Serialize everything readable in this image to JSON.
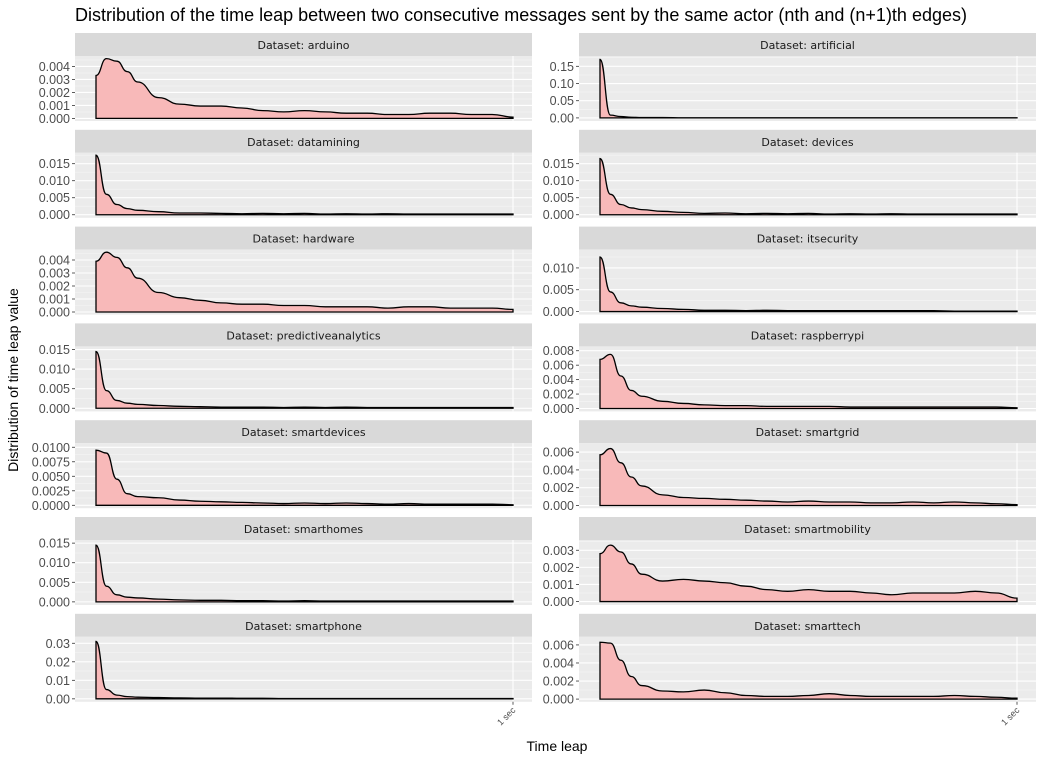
{
  "chart_data": {
    "type": "area",
    "title": "Distribution of the time leap between two consecutive messages sent by the same actor (nth and (n+1)th edges)",
    "xlabel": "Time leap",
    "ylabel": "Distribution of time leap value",
    "x_tick_label": "1 sec",
    "strip_prefix": "Dataset: ",
    "fill_color": "#F8B9B9",
    "line_color": "#000000",
    "panel_bg": "#EBEBEB",
    "strip_bg": "#D9D9D9",
    "x_points": [
      0,
      0.025,
      0.05,
      0.075,
      0.1,
      0.15,
      0.2,
      0.25,
      0.3,
      0.35,
      0.4,
      0.45,
      0.5,
      0.55,
      0.6,
      0.65,
      0.7,
      0.75,
      0.8,
      0.85,
      0.9,
      0.95,
      1.0
    ],
    "panels": [
      {
        "name": "arduino",
        "yticks": [
          "0.000",
          "0.001",
          "0.002",
          "0.003",
          "0.004"
        ],
        "tickvals": [
          0,
          0.001,
          0.002,
          0.003,
          0.004
        ],
        "ylim": [
          -0.0002,
          0.0048
        ],
        "values": [
          0.0033,
          0.0046,
          0.0044,
          0.0036,
          0.0028,
          0.0016,
          0.0011,
          0.00095,
          0.00095,
          0.0008,
          0.0006,
          0.0005,
          0.0006,
          0.0005,
          0.0004,
          0.0004,
          0.0003,
          0.0003,
          0.0004,
          0.0004,
          0.0003,
          0.0003,
          0.0001
        ]
      },
      {
        "name": "artificial",
        "yticks": [
          "0.00",
          "0.05",
          "0.10",
          "0.15"
        ],
        "tickvals": [
          0,
          0.05,
          0.1,
          0.15
        ],
        "ylim": [
          -0.009,
          0.18
        ],
        "values": [
          0.17,
          0.008,
          0.004,
          0.002,
          0.001,
          0.001,
          0.0005,
          0.0004,
          0.0004,
          0.0003,
          0.0003,
          0.0003,
          0.0002,
          0.0002,
          0.0002,
          0.0002,
          0.0002,
          0.0002,
          0.0002,
          0.0002,
          0.0002,
          0.0002,
          0.0002
        ]
      },
      {
        "name": "datamining",
        "yticks": [
          "0.000",
          "0.005",
          "0.010",
          "0.015"
        ],
        "tickvals": [
          0,
          0.005,
          0.01,
          0.015
        ],
        "ylim": [
          -0.0009,
          0.0182
        ],
        "values": [
          0.0175,
          0.006,
          0.003,
          0.0018,
          0.0013,
          0.0009,
          0.0005,
          0.0005,
          0.0004,
          0.0003,
          0.0004,
          0.0003,
          0.0004,
          0.0002,
          0.0003,
          0.0002,
          0.0003,
          0.0002,
          0.0002,
          0.0002,
          0.0002,
          0.0002,
          0.0002
        ]
      },
      {
        "name": "devices",
        "yticks": [
          "0.000",
          "0.005",
          "0.010",
          "0.015"
        ],
        "tickvals": [
          0,
          0.005,
          0.01,
          0.015
        ],
        "ylim": [
          -0.0009,
          0.0182
        ],
        "values": [
          0.0165,
          0.006,
          0.003,
          0.002,
          0.0015,
          0.001,
          0.0007,
          0.0004,
          0.0005,
          0.0003,
          0.0004,
          0.0003,
          0.0004,
          0.0002,
          0.0003,
          0.0002,
          0.0003,
          0.0002,
          0.0002,
          0.0002,
          0.0002,
          0.0002,
          0.0002
        ]
      },
      {
        "name": "hardware",
        "yticks": [
          "0.000",
          "0.001",
          "0.002",
          "0.003",
          "0.004"
        ],
        "tickvals": [
          0,
          0.001,
          0.002,
          0.003,
          0.004
        ],
        "ylim": [
          -0.0002,
          0.0048
        ],
        "values": [
          0.0039,
          0.0046,
          0.0042,
          0.0034,
          0.0026,
          0.0015,
          0.0011,
          0.0009,
          0.0007,
          0.0006,
          0.0006,
          0.0005,
          0.0005,
          0.0004,
          0.0004,
          0.0004,
          0.0003,
          0.0004,
          0.0004,
          0.0003,
          0.0003,
          0.0003,
          0.0002
        ]
      },
      {
        "name": "itsecurity",
        "yticks": [
          "0.000",
          "0.005",
          "0.010"
        ],
        "tickvals": [
          0,
          0.005,
          0.01
        ],
        "ylim": [
          -0.0007,
          0.0142
        ],
        "values": [
          0.0125,
          0.0045,
          0.002,
          0.0013,
          0.001,
          0.0007,
          0.0005,
          0.0003,
          0.0003,
          0.0002,
          0.0003,
          0.0002,
          0.0002,
          0.0002,
          0.0002,
          0.0002,
          0.0002,
          0.0002,
          0.0002,
          0.0001,
          0.0001,
          0.0001,
          0.0001
        ]
      },
      {
        "name": "predictiveanalytics",
        "yticks": [
          "0.000",
          "0.005",
          "0.010",
          "0.015"
        ],
        "tickvals": [
          0,
          0.005,
          0.01,
          0.015
        ],
        "ylim": [
          -0.0008,
          0.0158
        ],
        "values": [
          0.0145,
          0.0045,
          0.002,
          0.0013,
          0.001,
          0.0007,
          0.0005,
          0.0004,
          0.0003,
          0.0003,
          0.0003,
          0.0002,
          0.0003,
          0.0002,
          0.0003,
          0.0002,
          0.0002,
          0.0002,
          0.0002,
          0.0002,
          0.0002,
          0.0002,
          0.0002
        ]
      },
      {
        "name": "raspberrypi",
        "yticks": [
          "0.000",
          "0.002",
          "0.004",
          "0.006",
          "0.008"
        ],
        "tickvals": [
          0,
          0.002,
          0.004,
          0.006,
          0.008
        ],
        "ylim": [
          -0.0004,
          0.0086
        ],
        "values": [
          0.0068,
          0.0075,
          0.0045,
          0.0025,
          0.0017,
          0.001,
          0.0007,
          0.0005,
          0.0004,
          0.0004,
          0.0003,
          0.0003,
          0.0003,
          0.0003,
          0.0002,
          0.0002,
          0.0002,
          0.0002,
          0.0002,
          0.0002,
          0.0002,
          0.0002,
          0.0001
        ]
      },
      {
        "name": "smartdevices",
        "yticks": [
          "0.0000",
          "0.0025",
          "0.0050",
          "0.0075",
          "0.0100"
        ],
        "tickvals": [
          0,
          0.0025,
          0.005,
          0.0075,
          0.01
        ],
        "ylim": [
          -0.0005,
          0.0107
        ],
        "values": [
          0.0095,
          0.009,
          0.0045,
          0.002,
          0.0015,
          0.0013,
          0.0009,
          0.0007,
          0.0006,
          0.0005,
          0.0004,
          0.0003,
          0.0004,
          0.0003,
          0.0004,
          0.0003,
          0.0002,
          0.0003,
          0.0002,
          0.0002,
          0.0002,
          0.0002,
          0.0001
        ]
      },
      {
        "name": "smartgrid",
        "yticks": [
          "0.000",
          "0.002",
          "0.004",
          "0.006"
        ],
        "tickvals": [
          0,
          0.002,
          0.004,
          0.006
        ],
        "ylim": [
          -0.0003,
          0.007
        ],
        "values": [
          0.0057,
          0.0064,
          0.0048,
          0.0032,
          0.0022,
          0.0012,
          0.0009,
          0.0008,
          0.0007,
          0.0006,
          0.0005,
          0.0004,
          0.0005,
          0.0004,
          0.0004,
          0.0003,
          0.0003,
          0.0004,
          0.0003,
          0.0004,
          0.0003,
          0.0002,
          0.0001
        ]
      },
      {
        "name": "smarthomes",
        "yticks": [
          "0.000",
          "0.005",
          "0.010",
          "0.015"
        ],
        "tickvals": [
          0,
          0.005,
          0.01,
          0.015
        ],
        "ylim": [
          -0.0008,
          0.0158
        ],
        "values": [
          0.0145,
          0.004,
          0.0018,
          0.0012,
          0.001,
          0.0007,
          0.0005,
          0.0004,
          0.0004,
          0.0003,
          0.0003,
          0.0002,
          0.0003,
          0.0002,
          0.0002,
          0.0002,
          0.0002,
          0.0002,
          0.0002,
          0.0002,
          0.0002,
          0.0002,
          0.0002
        ]
      },
      {
        "name": "smartmobility",
        "yticks": [
          "0.000",
          "0.001",
          "0.002",
          "0.003"
        ],
        "tickvals": [
          0,
          0.001,
          0.002,
          0.003
        ],
        "ylim": [
          -0.0002,
          0.0036
        ],
        "values": [
          0.0028,
          0.0033,
          0.0029,
          0.0022,
          0.0016,
          0.0012,
          0.0013,
          0.0012,
          0.0011,
          0.0009,
          0.0007,
          0.0006,
          0.0007,
          0.0006,
          0.0006,
          0.0005,
          0.0004,
          0.0005,
          0.0005,
          0.0005,
          0.0006,
          0.0005,
          0.0002
        ]
      },
      {
        "name": "smartphone",
        "yticks": [
          "0.00",
          "0.01",
          "0.02",
          "0.03"
        ],
        "tickvals": [
          0,
          0.01,
          0.02,
          0.03
        ],
        "ylim": [
          -0.0016,
          0.0335
        ],
        "values": [
          0.031,
          0.005,
          0.002,
          0.0012,
          0.0009,
          0.0007,
          0.0005,
          0.0004,
          0.0004,
          0.0003,
          0.0003,
          0.0002,
          0.0002,
          0.0002,
          0.0002,
          0.0002,
          0.0002,
          0.0002,
          0.0002,
          0.0002,
          0.0002,
          0.0002,
          0.0002
        ]
      },
      {
        "name": "smarttech",
        "yticks": [
          "0.000",
          "0.002",
          "0.004",
          "0.006"
        ],
        "tickvals": [
          0,
          0.002,
          0.004,
          0.006
        ],
        "ylim": [
          -0.0003,
          0.0069
        ],
        "values": [
          0.0063,
          0.0062,
          0.0043,
          0.0025,
          0.0015,
          0.0009,
          0.0008,
          0.001,
          0.0007,
          0.0004,
          0.0003,
          0.0003,
          0.0004,
          0.0006,
          0.0004,
          0.0003,
          0.0003,
          0.0003,
          0.0003,
          0.0004,
          0.0003,
          0.0002,
          0.0001
        ]
      }
    ]
  }
}
